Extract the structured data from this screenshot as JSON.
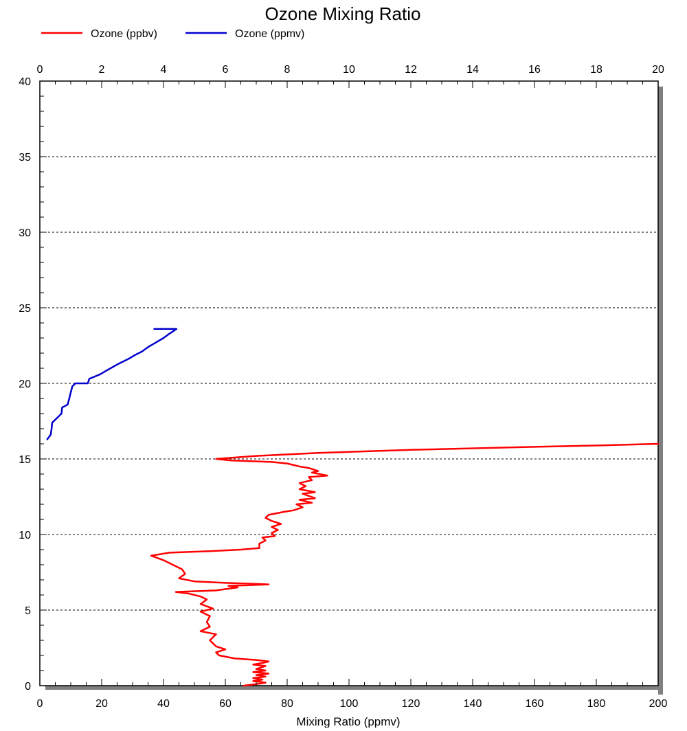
{
  "chart_data": {
    "type": "line",
    "title": "Ozone Mixing Ratio",
    "xlabel": "Mixing Ratio (ppmv)",
    "ylabel": "",
    "bottom_axis": {
      "range": [
        0,
        200
      ],
      "ticks": [
        0,
        20,
        40,
        60,
        80,
        100,
        120,
        140,
        160,
        180,
        200
      ]
    },
    "top_axis": {
      "range": [
        0,
        20
      ],
      "ticks": [
        0,
        2,
        4,
        6,
        8,
        10,
        12,
        14,
        16,
        18,
        20
      ]
    },
    "y_axis": {
      "range": [
        0,
        40
      ],
      "ticks": [
        0,
        5,
        10,
        15,
        20,
        25,
        30,
        35,
        40
      ]
    },
    "grid": "horizontal dotted lines at major y ticks",
    "legend_position": "top-left",
    "series": [
      {
        "name": "Ozone (ppbv)",
        "color": "#ff0000",
        "axis": "bottom",
        "points": [
          [
            66,
            0.0
          ],
          [
            70,
            0.1
          ],
          [
            73,
            0.2
          ],
          [
            69,
            0.3
          ],
          [
            72,
            0.4
          ],
          [
            69,
            0.5
          ],
          [
            73,
            0.6
          ],
          [
            70,
            0.7
          ],
          [
            74,
            0.8
          ],
          [
            69,
            0.9
          ],
          [
            73,
            1.0
          ],
          [
            70,
            1.1
          ],
          [
            73,
            1.3
          ],
          [
            69,
            1.4
          ],
          [
            72,
            1.5
          ],
          [
            74,
            1.6
          ],
          [
            70,
            1.7
          ],
          [
            63,
            1.8
          ],
          [
            58,
            2.0
          ],
          [
            57,
            2.2
          ],
          [
            60,
            2.4
          ],
          [
            57,
            2.6
          ],
          [
            55,
            3.0
          ],
          [
            57,
            3.4
          ],
          [
            52,
            3.6
          ],
          [
            55,
            3.9
          ],
          [
            54,
            4.2
          ],
          [
            55,
            4.6
          ],
          [
            52,
            4.9
          ],
          [
            56,
            5.1
          ],
          [
            52,
            5.4
          ],
          [
            54,
            5.7
          ],
          [
            52,
            5.9
          ],
          [
            48,
            6.1
          ],
          [
            44,
            6.2
          ],
          [
            57,
            6.3
          ],
          [
            64,
            6.5
          ],
          [
            61,
            6.6
          ],
          [
            74,
            6.7
          ],
          [
            60,
            6.8
          ],
          [
            50,
            6.9
          ],
          [
            45,
            7.1
          ],
          [
            47,
            7.4
          ],
          [
            46,
            7.7
          ],
          [
            43,
            8.0
          ],
          [
            40,
            8.3
          ],
          [
            36,
            8.6
          ],
          [
            42,
            8.8
          ],
          [
            55,
            8.9
          ],
          [
            65,
            9.0
          ],
          [
            71,
            9.1
          ],
          [
            71,
            9.4
          ],
          [
            73,
            9.6
          ],
          [
            72,
            9.8
          ],
          [
            76,
            9.9
          ],
          [
            75,
            10.1
          ],
          [
            77,
            10.3
          ],
          [
            75,
            10.5
          ],
          [
            78,
            10.7
          ],
          [
            75,
            10.9
          ],
          [
            73,
            11.1
          ],
          [
            74,
            11.3
          ],
          [
            79,
            11.5
          ],
          [
            82,
            11.6
          ],
          [
            85,
            11.8
          ],
          [
            83,
            12.0
          ],
          [
            88,
            12.1
          ],
          [
            84,
            12.3
          ],
          [
            89,
            12.4
          ],
          [
            85,
            12.7
          ],
          [
            89,
            12.8
          ],
          [
            84,
            13.0
          ],
          [
            86,
            13.2
          ],
          [
            84,
            13.4
          ],
          [
            88,
            13.6
          ],
          [
            87,
            13.8
          ],
          [
            93,
            13.9
          ],
          [
            88,
            14.1
          ],
          [
            90,
            14.2
          ],
          [
            87,
            14.4
          ],
          [
            84,
            14.5
          ],
          [
            80,
            14.7
          ],
          [
            75,
            14.8
          ],
          [
            62,
            14.9
          ],
          [
            57,
            15.0
          ],
          [
            70,
            15.2
          ],
          [
            90,
            15.4
          ],
          [
            120,
            15.6
          ],
          [
            160,
            15.8
          ],
          [
            182,
            15.9
          ],
          [
            200,
            16.0
          ]
        ]
      },
      {
        "name": "Ozone (ppmv)",
        "color": "#0000cc",
        "axis": "top",
        "points": [
          [
            0.24,
            16.3
          ],
          [
            0.35,
            16.6
          ],
          [
            0.38,
            17.0
          ],
          [
            0.4,
            17.4
          ],
          [
            0.55,
            17.7
          ],
          [
            0.7,
            18.0
          ],
          [
            0.72,
            18.4
          ],
          [
            0.9,
            18.6
          ],
          [
            0.95,
            19.0
          ],
          [
            1.0,
            19.4
          ],
          [
            1.05,
            19.8
          ],
          [
            1.15,
            20.0
          ],
          [
            1.55,
            20.0
          ],
          [
            1.6,
            20.3
          ],
          [
            1.95,
            20.6
          ],
          [
            2.2,
            20.9
          ],
          [
            2.55,
            21.3
          ],
          [
            2.85,
            21.6
          ],
          [
            3.1,
            21.9
          ],
          [
            3.3,
            22.1
          ],
          [
            3.5,
            22.4
          ],
          [
            3.75,
            22.7
          ],
          [
            4.0,
            23.0
          ],
          [
            4.2,
            23.3
          ],
          [
            4.42,
            23.6
          ],
          [
            3.7,
            23.6
          ]
        ]
      }
    ]
  }
}
